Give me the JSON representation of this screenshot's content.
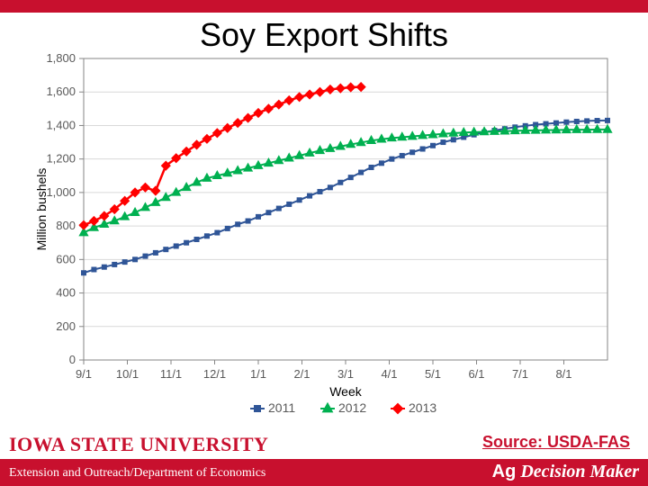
{
  "title": "Soy Export Shifts",
  "source_label": "Source: USDA-FAS",
  "footer_left": "Extension and Outreach/Department of Economics",
  "footer_right_prefix": "Ag",
  "footer_right_rest": " Decision Maker",
  "isu_label": "IOWA STATE UNIVERSITY",
  "chart": {
    "type": "line",
    "background_color": "#ffffff",
    "plot_border_color": "#868686",
    "grid_color": "#d9d9d9",
    "axis_text_color": "#595959",
    "axis_title_color": "#000000",
    "tick_font_size": 13,
    "axis_title_font_size": 14,
    "y": {
      "label": "Million bushels",
      "min": 0,
      "max": 1800,
      "step": 200
    },
    "x": {
      "label": "Week",
      "categories": [
        "9/1",
        "10/1",
        "11/1",
        "12/1",
        "1/1",
        "2/1",
        "3/1",
        "4/1",
        "5/1",
        "6/1",
        "7/1",
        "8/1"
      ],
      "n_weeks": 52
    },
    "legend": {
      "position": "bottom",
      "font_size": 14,
      "items": [
        {
          "label": "2011",
          "color": "#2f5597",
          "marker": "square"
        },
        {
          "label": "2012",
          "color": "#00b050",
          "marker": "triangle"
        },
        {
          "label": "2013",
          "color": "#ff0000",
          "marker": "diamond"
        }
      ]
    },
    "series": [
      {
        "name": "2011",
        "color": "#2f5597",
        "line_width": 2,
        "marker": "square",
        "marker_size": 6,
        "values": [
          520,
          540,
          555,
          570,
          585,
          600,
          620,
          640,
          660,
          680,
          700,
          720,
          740,
          760,
          785,
          810,
          830,
          855,
          880,
          905,
          930,
          955,
          980,
          1005,
          1030,
          1060,
          1090,
          1120,
          1150,
          1175,
          1200,
          1220,
          1240,
          1260,
          1280,
          1300,
          1315,
          1330,
          1345,
          1360,
          1370,
          1380,
          1390,
          1398,
          1405,
          1410,
          1415,
          1420,
          1424,
          1427,
          1429,
          1430
        ]
      },
      {
        "name": "2012",
        "color": "#00b050",
        "line_width": 2,
        "marker": "triangle",
        "marker_size": 7,
        "values": [
          760,
          790,
          810,
          830,
          855,
          880,
          910,
          940,
          970,
          1000,
          1030,
          1060,
          1085,
          1100,
          1115,
          1130,
          1145,
          1160,
          1175,
          1190,
          1205,
          1220,
          1235,
          1250,
          1262,
          1275,
          1287,
          1298,
          1310,
          1318,
          1325,
          1330,
          1335,
          1340,
          1345,
          1350,
          1354,
          1358,
          1360,
          1362,
          1364,
          1366,
          1368,
          1370,
          1371,
          1372,
          1373,
          1374,
          1375,
          1375,
          1376,
          1376
        ]
      },
      {
        "name": "2013",
        "color": "#ff0000",
        "line_width": 2.5,
        "marker": "diamond",
        "marker_size": 7,
        "values": [
          805,
          830,
          860,
          900,
          950,
          1000,
          1030,
          1010,
          1160,
          1205,
          1245,
          1285,
          1320,
          1355,
          1385,
          1415,
          1445,
          1475,
          1500,
          1525,
          1550,
          1570,
          1585,
          1600,
          1615,
          1622,
          1628,
          1630
        ]
      }
    ]
  }
}
